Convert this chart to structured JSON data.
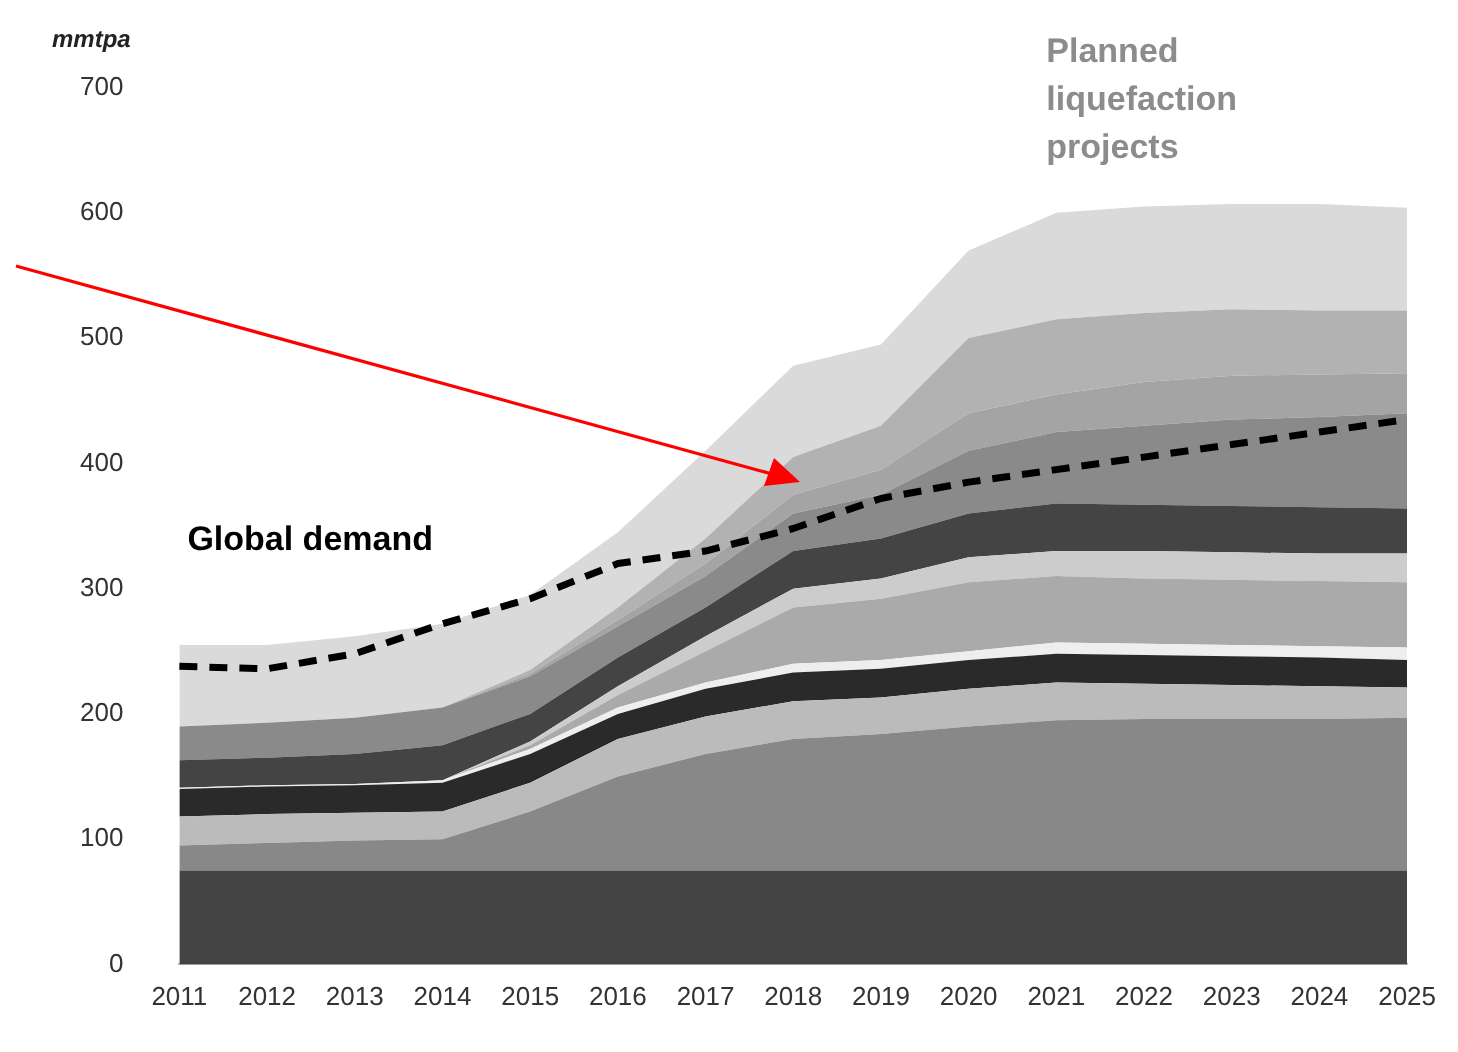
{
  "chart_data": {
    "type": "area",
    "stacked": true,
    "ylabel": "mmtpa",
    "annotations": [
      "Planned liquefaction projects"
    ],
    "categories": [
      "2011",
      "2012",
      "2013",
      "2014",
      "2015",
      "2016",
      "2017",
      "2018",
      "2019",
      "2020",
      "2021",
      "2022",
      "2023",
      "2024",
      "2025"
    ],
    "ylim": [
      0,
      700
    ],
    "yticks": [
      0,
      100,
      200,
      300,
      400,
      500,
      600,
      700
    ],
    "grid": false,
    "legend": false,
    "series": [
      {
        "color": "#444444",
        "values": [
          75,
          75,
          75,
          75,
          75,
          75,
          75,
          75,
          75,
          75,
          75,
          75,
          75,
          75,
          75
        ]
      },
      {
        "color": "#888888",
        "values": [
          20,
          22,
          24,
          25,
          47,
          75,
          93,
          105,
          109,
          115,
          120,
          121,
          121,
          121,
          122
        ]
      },
      {
        "color": "#bbbbbb",
        "values": [
          23,
          23,
          22,
          22,
          23,
          30,
          30,
          30,
          29,
          30,
          30,
          28,
          27,
          26,
          24
        ]
      },
      {
        "color": "#2a2a2a",
        "values": [
          22,
          22,
          22,
          23,
          23,
          20,
          22,
          23,
          23,
          23,
          23,
          23,
          23,
          23,
          22
        ]
      },
      {
        "color": "#eeeeee",
        "values": [
          1,
          1,
          1,
          2,
          4,
          5,
          5,
          7,
          7,
          7,
          9,
          9,
          9,
          9,
          10
        ]
      },
      {
        "color": "#aaaaaa",
        "values": [
          0,
          0,
          0,
          0,
          3,
          10,
          25,
          45,
          49,
          55,
          53,
          52,
          52,
          52,
          52
        ]
      },
      {
        "color": "#cccccc",
        "values": [
          0,
          0,
          0,
          0,
          3,
          7,
          12,
          15,
          16,
          20,
          20,
          22,
          22,
          22,
          23
        ]
      },
      {
        "color": "#444444",
        "values": [
          22,
          22,
          24,
          28,
          22,
          23,
          23,
          30,
          32,
          35,
          38,
          37,
          37,
          37,
          36
        ]
      },
      {
        "color": "#8a8a8a",
        "values": [
          27,
          28,
          29,
          30,
          30,
          25,
          25,
          30,
          35,
          50,
          57,
          63,
          69,
          72,
          76
        ]
      },
      {
        "color": "#a4a4a4",
        "values": [
          0,
          0,
          0,
          0,
          2,
          5,
          10,
          15,
          20,
          30,
          30,
          35,
          35,
          34,
          32
        ]
      },
      {
        "color": "#b2b2b2",
        "values": [
          0,
          0,
          0,
          0,
          3,
          10,
          20,
          30,
          35,
          60,
          60,
          55,
          53,
          51,
          50
        ]
      },
      {
        "color": "#dadada",
        "values": [
          65,
          62,
          65,
          67,
          60,
          60,
          70,
          73,
          65,
          70,
          85,
          85,
          84,
          85,
          82
        ]
      },
      {
        "name": "Global demand",
        "type": "line",
        "line_style": "dashed",
        "color": "#000000",
        "values": [
          238,
          236,
          248,
          272,
          292,
          320,
          330,
          348,
          372,
          385,
          395,
          405,
          415,
          425,
          435
        ]
      }
    ]
  }
}
